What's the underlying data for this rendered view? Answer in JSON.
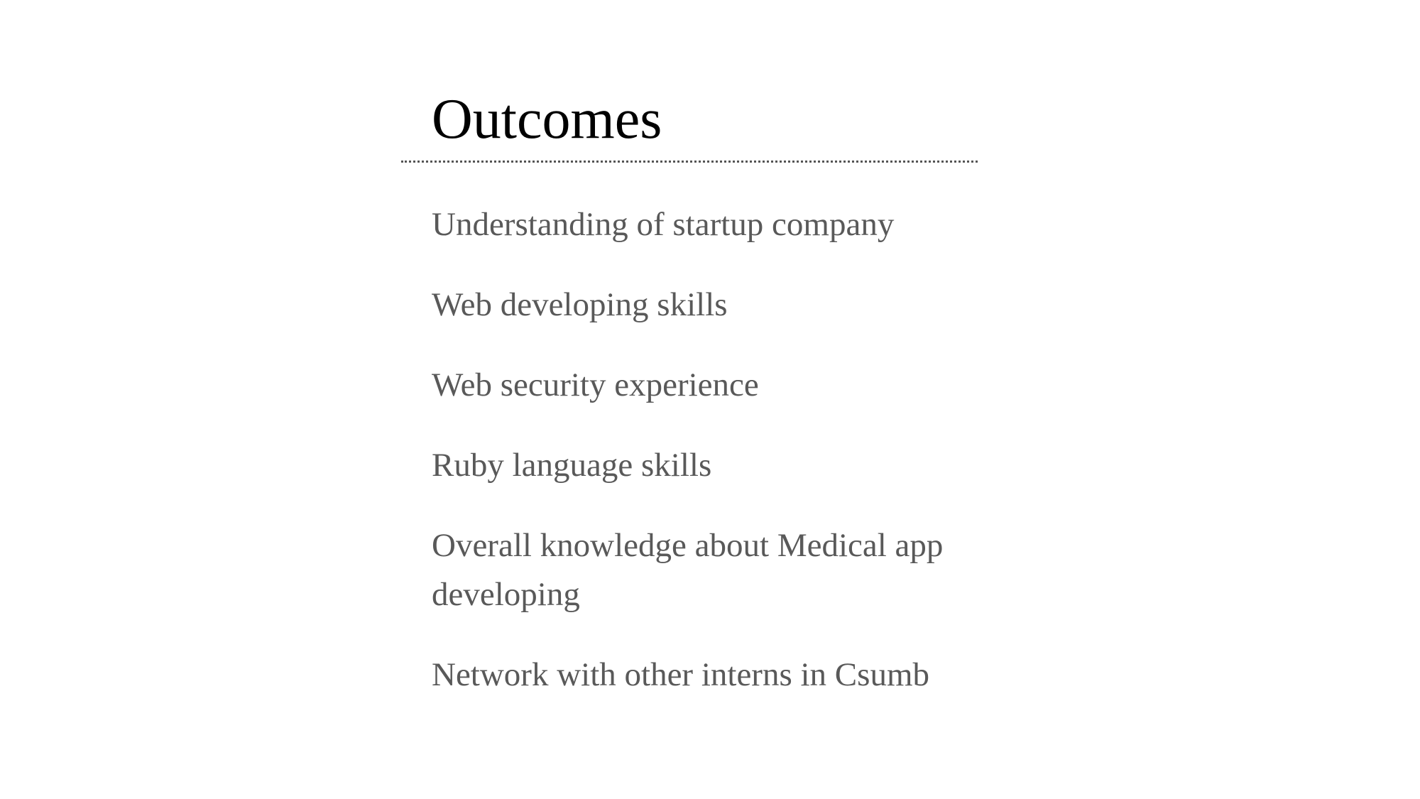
{
  "slide": {
    "title": "Outcomes",
    "items": [
      "Understanding of startup company",
      "Web developing skills",
      "Web security experience",
      "Ruby language skills",
      "Overall knowledge about Medical app developing",
      "Network with other interns in Csumb"
    ]
  },
  "colors": {
    "title": "#000000",
    "body_text": "#595959",
    "divider": "#555555",
    "background": "#ffffff"
  }
}
